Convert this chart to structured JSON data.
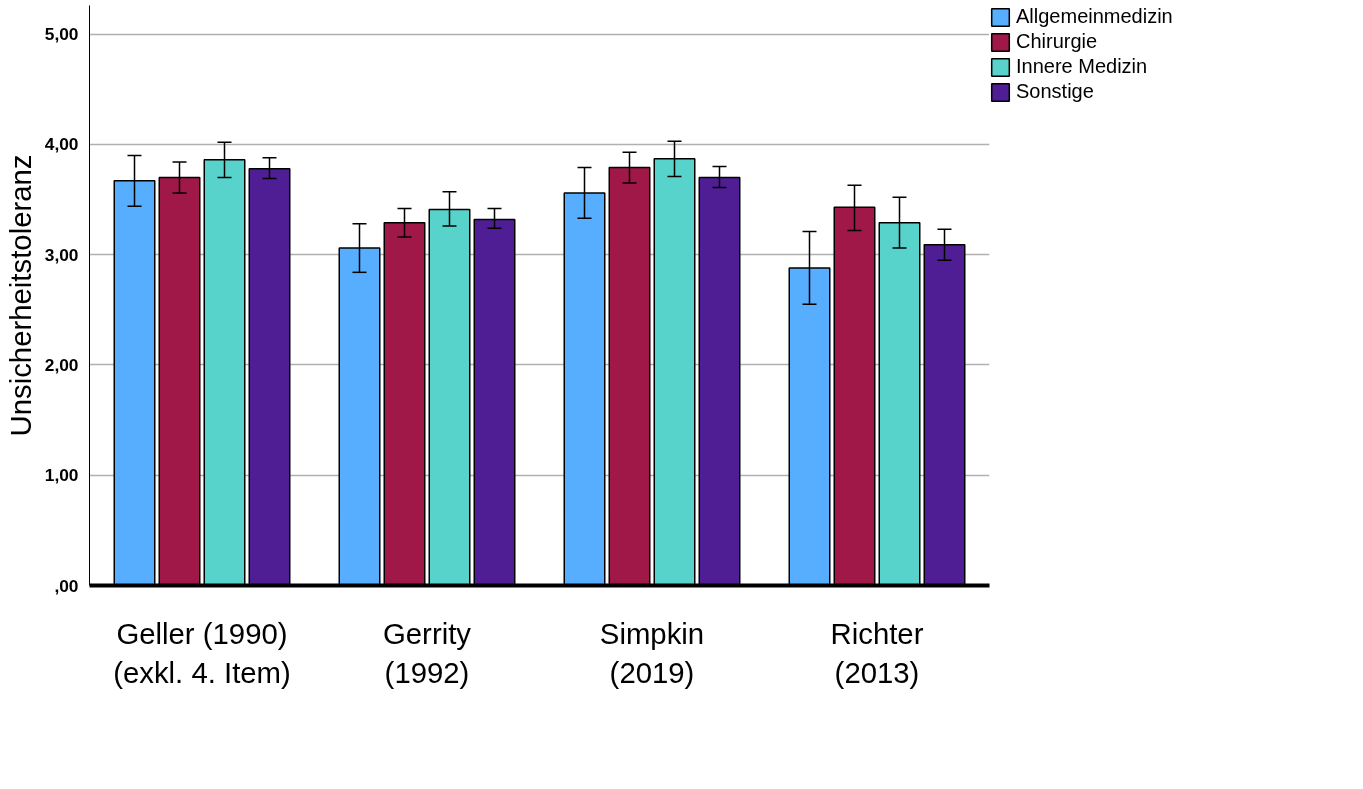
{
  "chart_data": {
    "type": "bar",
    "ylabel": "Unsicherheitstoleranz",
    "categories": [
      "Geller (1990)\n(exkl. 4. Item)",
      "Gerrity\n(1992)",
      "Simpkin\n(2019)",
      "Richter\n(2013)"
    ],
    "series": [
      {
        "name": "Allgemeinmedizin",
        "color": "#57aefe",
        "values": [
          3.67,
          3.06,
          3.56,
          2.88
        ],
        "errors": [
          [
            3.44,
            3.9
          ],
          [
            2.84,
            3.28
          ],
          [
            3.33,
            3.79
          ],
          [
            2.55,
            3.21
          ]
        ]
      },
      {
        "name": "Chirurgie",
        "color": "#9f1848",
        "values": [
          3.7,
          3.29,
          3.79,
          3.43
        ],
        "errors": [
          [
            3.56,
            3.84
          ],
          [
            3.16,
            3.42
          ],
          [
            3.65,
            3.93
          ],
          [
            3.22,
            3.63
          ]
        ]
      },
      {
        "name": "Innere Medizin",
        "color": "#58d3cb",
        "values": [
          3.86,
          3.41,
          3.87,
          3.29
        ],
        "errors": [
          [
            3.7,
            4.02
          ],
          [
            3.26,
            3.57
          ],
          [
            3.71,
            4.03
          ],
          [
            3.06,
            3.52
          ]
        ]
      },
      {
        "name": "Sonstige",
        "color": "#501e94",
        "values": [
          3.78,
          3.32,
          3.7,
          3.09
        ],
        "errors": [
          [
            3.69,
            3.88
          ],
          [
            3.24,
            3.42
          ],
          [
            3.61,
            3.8
          ],
          [
            2.95,
            3.23
          ]
        ]
      }
    ],
    "ylim": [
      0,
      5.26
    ],
    "yticks": [
      {
        "value": 0,
        "label": ",00"
      },
      {
        "value": 1,
        "label": "1,00"
      },
      {
        "value": 2,
        "label": "2,00"
      },
      {
        "value": 3,
        "label": "3,00"
      },
      {
        "value": 4,
        "label": "4,00"
      },
      {
        "value": 5,
        "label": "5,00"
      }
    ],
    "grid": "y",
    "legend": "top right"
  }
}
